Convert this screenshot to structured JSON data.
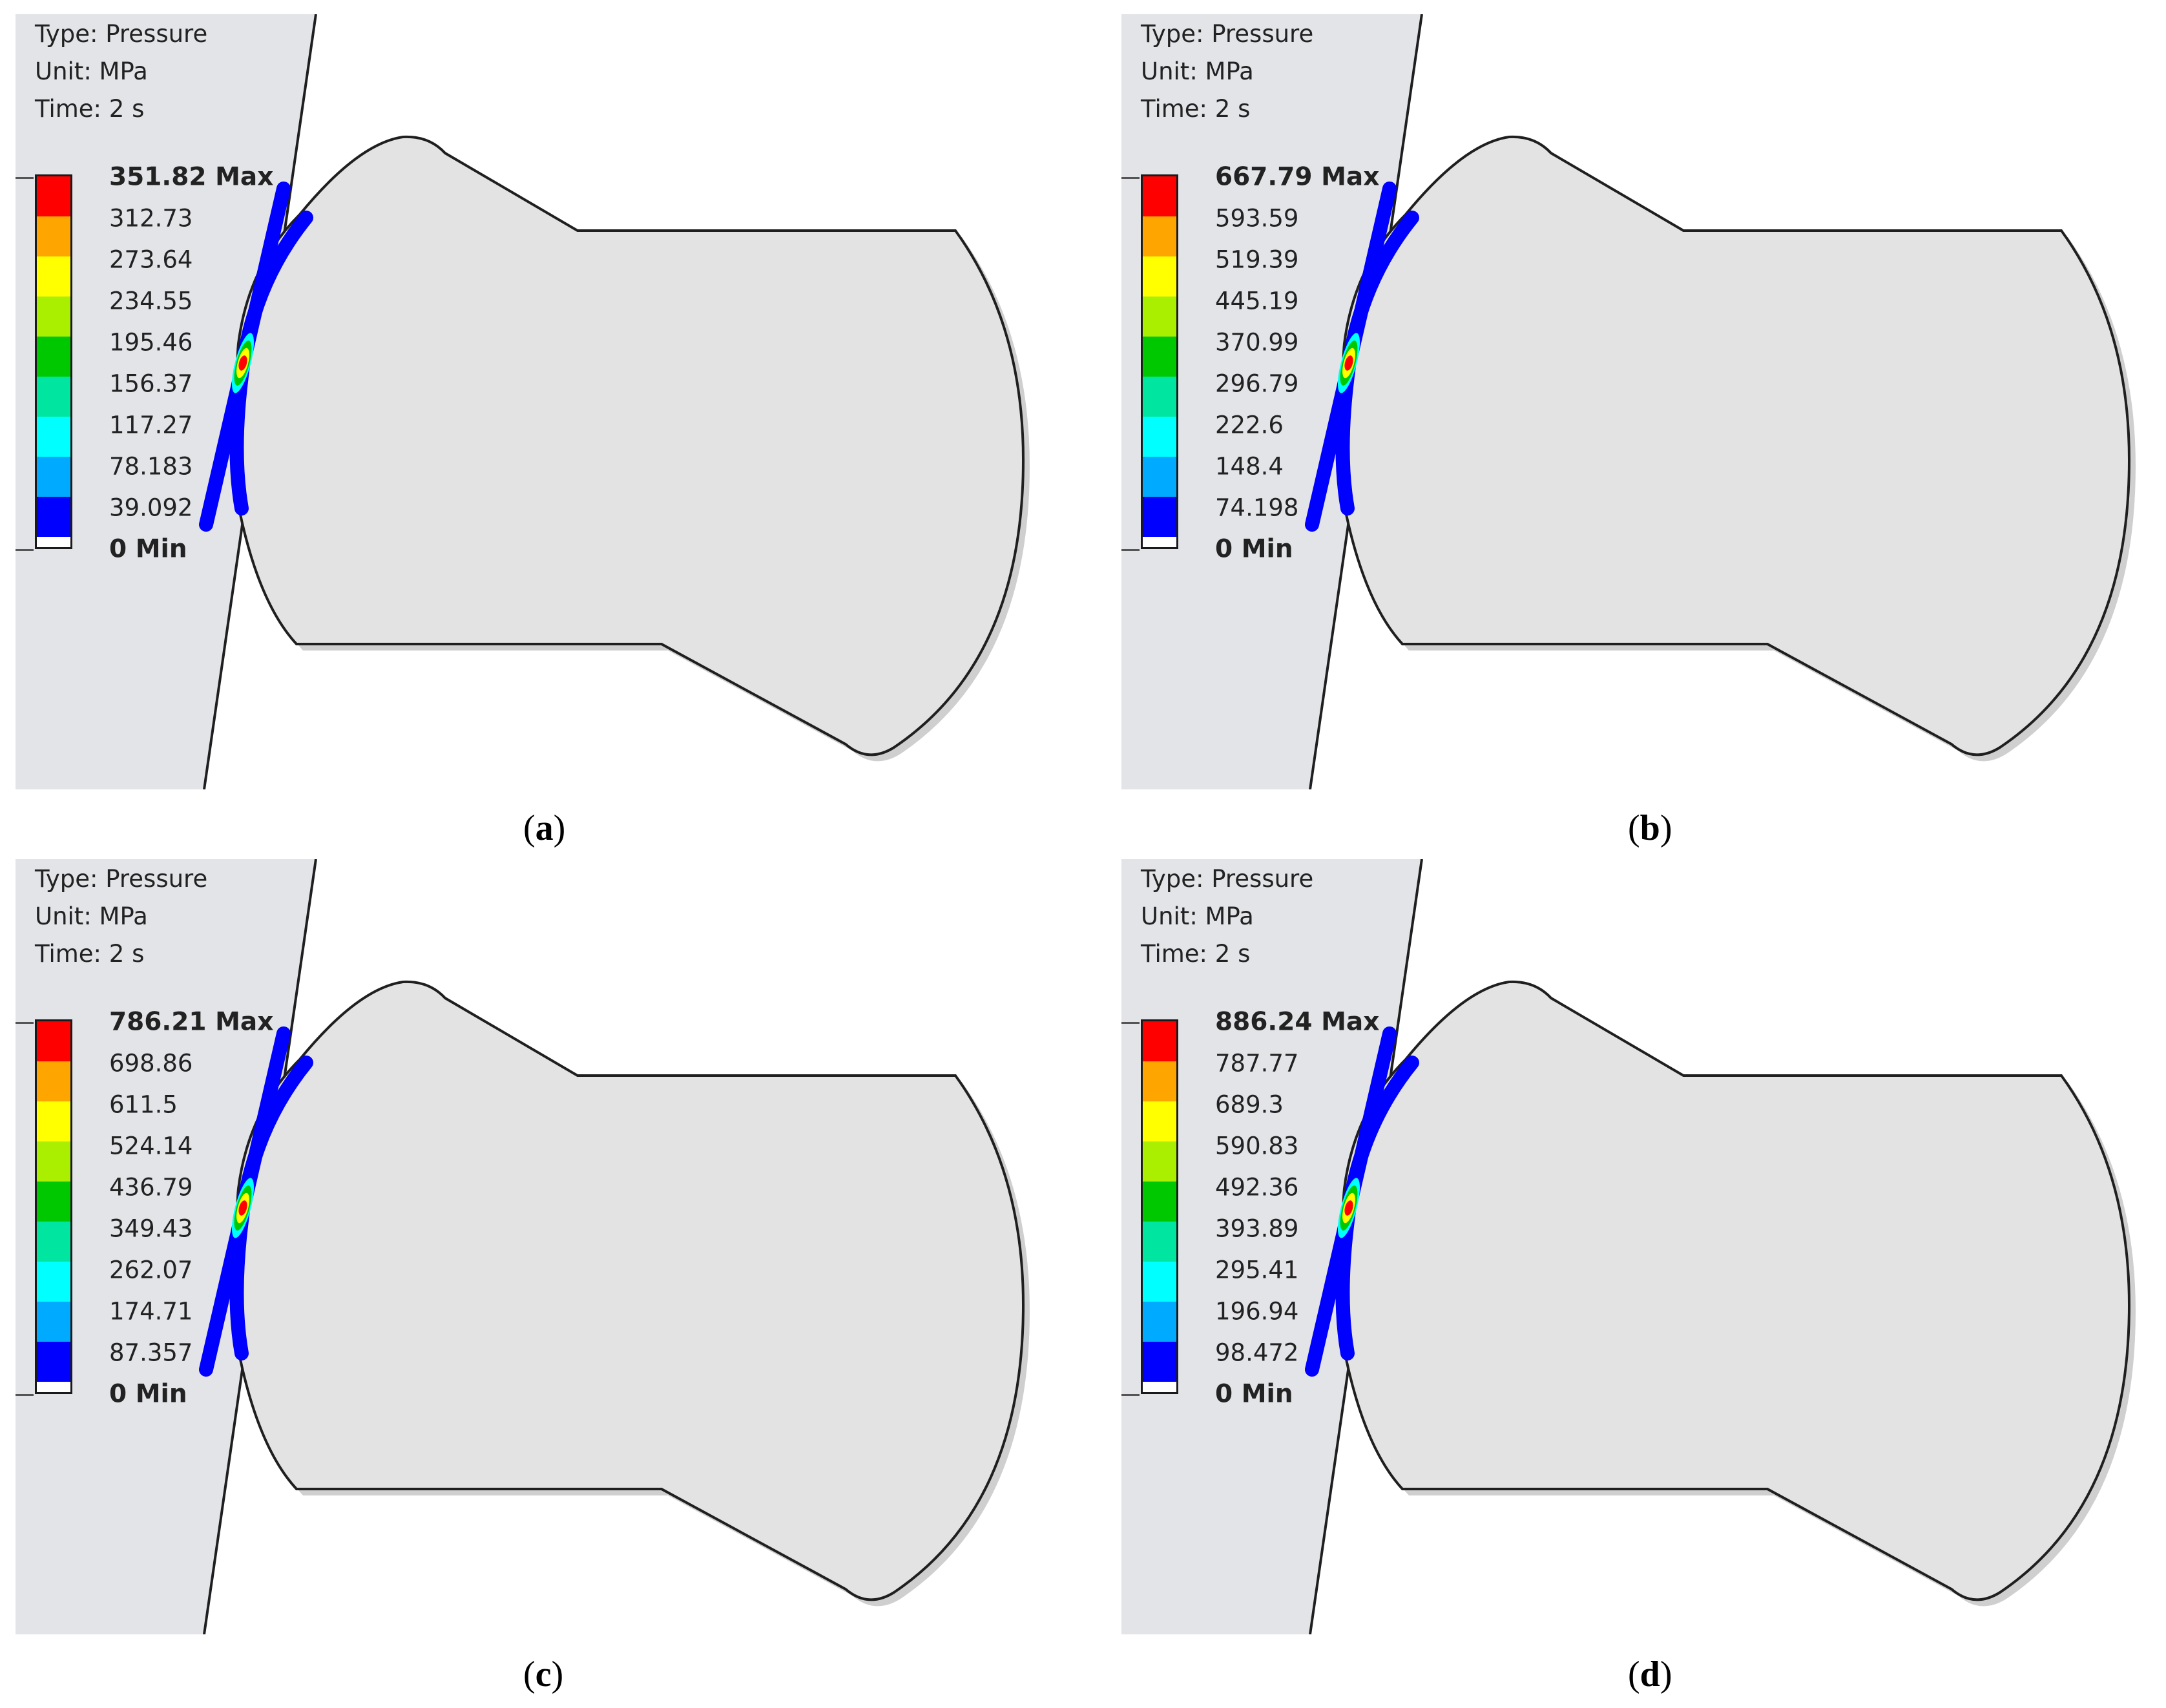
{
  "panels": [
    {
      "id": "a",
      "caption_letter": "a",
      "type_label": "Type: Pressure",
      "unit_label": "Unit: MPa",
      "time_label": "Time: 2 s",
      "max_label": "351.82 Max",
      "min_label": "0 Min",
      "levels": [
        "312.73",
        "273.64",
        "234.55",
        "195.46",
        "156.37",
        "117.27",
        "78.183",
        "39.092"
      ]
    },
    {
      "id": "b",
      "caption_letter": "b",
      "type_label": "Type: Pressure",
      "unit_label": "Unit: MPa",
      "time_label": "Time: 2 s",
      "max_label": "667.79 Max",
      "min_label": "0 Min",
      "levels": [
        "593.59",
        "519.39",
        "445.19",
        "370.99",
        "296.79",
        "222.6",
        "148.4",
        "74.198"
      ]
    },
    {
      "id": "c",
      "caption_letter": "c",
      "type_label": "Type: Pressure",
      "unit_label": "Unit: MPa",
      "time_label": "Time: 2 s",
      "max_label": "786.21 Max",
      "min_label": "0 Min",
      "levels": [
        "698.86",
        "611.5",
        "524.14",
        "436.79",
        "349.43",
        "262.07",
        "174.71",
        "87.357"
      ]
    },
    {
      "id": "d",
      "caption_letter": "d",
      "type_label": "Type: Pressure",
      "unit_label": "Unit: MPa",
      "time_label": "Time: 2 s",
      "max_label": "886.24 Max",
      "min_label": "0 Min",
      "levels": [
        "787.77",
        "689.3",
        "590.83",
        "492.36",
        "393.89",
        "295.41",
        "196.94",
        "98.472"
      ]
    }
  ],
  "colormap": [
    "#ff0000",
    "#ffa500",
    "#ffff00",
    "#aaee00",
    "#00c800",
    "#00e6a0",
    "#00ffff",
    "#00aaff",
    "#0000ff"
  ],
  "colors": {
    "background_plate": "#e2e4e8",
    "body_fill": "#e3e3e3",
    "outline": "#1f1f1f",
    "contact_band": "#0000ff"
  }
}
